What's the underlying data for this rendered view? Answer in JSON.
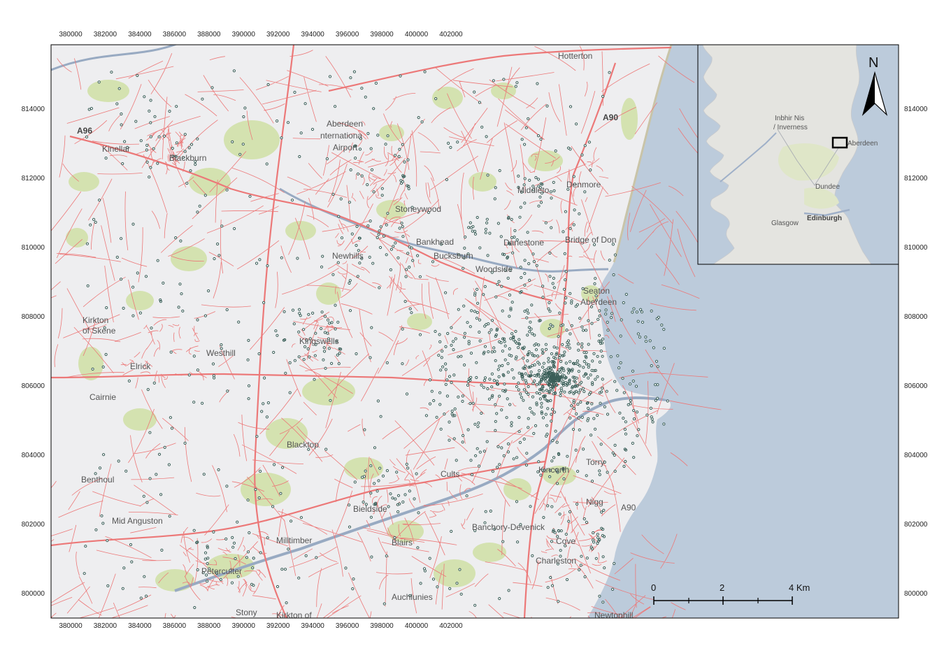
{
  "colors": {
    "land": "#eeeef0",
    "sea": "#bccbdb",
    "green": "#d4e2b0",
    "road": "#ec7878",
    "river": "#98aac2",
    "stop": "#3a5e58",
    "frame": "#000000"
  },
  "axes": {
    "x_ticks": [
      "380000",
      "382000",
      "384000",
      "386000",
      "388000",
      "390000",
      "392000",
      "394000",
      "396000",
      "398000",
      "400000",
      "402000"
    ],
    "y_ticks": [
      "814000",
      "812000",
      "810000",
      "808000",
      "806000",
      "804000",
      "802000",
      "800000"
    ]
  },
  "places": [
    {
      "name": "Hotterton",
      "bold": false
    },
    {
      "name": "Aberdeen",
      "bold": false
    },
    {
      "name": "nternationa",
      "bold": false
    },
    {
      "name": "Airport",
      "bold": false
    },
    {
      "name": "Kinellar",
      "bold": false
    },
    {
      "name": "Blackburn",
      "bold": false
    },
    {
      "name": "A96",
      "bold": true
    },
    {
      "name": "A90",
      "bold": true
    },
    {
      "name": "Middleto",
      "bold": false
    },
    {
      "name": "Denmore",
      "bold": false
    },
    {
      "name": "Stoneywood",
      "bold": false
    },
    {
      "name": "Bankhead",
      "bold": false
    },
    {
      "name": "Newhills",
      "bold": false
    },
    {
      "name": "Bucksburn",
      "bold": false
    },
    {
      "name": "Danestone",
      "bold": false
    },
    {
      "name": "Woodside",
      "bold": false
    },
    {
      "name": "Bridge of Don",
      "bold": false
    },
    {
      "name": "Seaton",
      "bold": false
    },
    {
      "name": "Aberdeen",
      "bold": false
    },
    {
      "name": "Kirkton",
      "bold": false
    },
    {
      "name": "of Skene",
      "bold": false
    },
    {
      "name": "Kingswells",
      "bold": false
    },
    {
      "name": "Westhill",
      "bold": false
    },
    {
      "name": "Elrick",
      "bold": false
    },
    {
      "name": "Cairnie",
      "bold": false
    },
    {
      "name": "Blacktop",
      "bold": false
    },
    {
      "name": "Benthoul",
      "bold": false
    },
    {
      "name": "Mid Anguston",
      "bold": false
    },
    {
      "name": "Cults",
      "bold": false
    },
    {
      "name": "Bieldside",
      "bold": false
    },
    {
      "name": "Milltimber",
      "bold": false
    },
    {
      "name": "Blairs",
      "bold": false
    },
    {
      "name": "Banchory-Devenick",
      "bold": false
    },
    {
      "name": "Kincorth",
      "bold": false
    },
    {
      "name": "Torry",
      "bold": false
    },
    {
      "name": "Peterculter",
      "bold": false
    },
    {
      "name": "Auchlunies",
      "bold": false
    },
    {
      "name": "Charleston",
      "bold": false
    },
    {
      "name": "Cove",
      "bold": false
    },
    {
      "name": "Stony",
      "bold": false
    },
    {
      "name": "Kirkton of",
      "bold": false
    },
    {
      "name": "Newtonhill",
      "bold": false
    },
    {
      "name": "Nigg",
      "bold": false
    },
    {
      "name": "A90",
      "bold": false
    }
  ],
  "inset": {
    "places": [
      {
        "name": "Inbhir Nis"
      },
      {
        "name": "/ Inverness"
      },
      {
        "name": "Aberdeen"
      },
      {
        "name": "Dundee"
      },
      {
        "name": "Edinburgh"
      },
      {
        "name": "Glasgow"
      }
    ]
  },
  "north_arrow": {
    "label": "N"
  },
  "scale_bar": {
    "labels": [
      "0",
      "2",
      "4 Km"
    ]
  }
}
